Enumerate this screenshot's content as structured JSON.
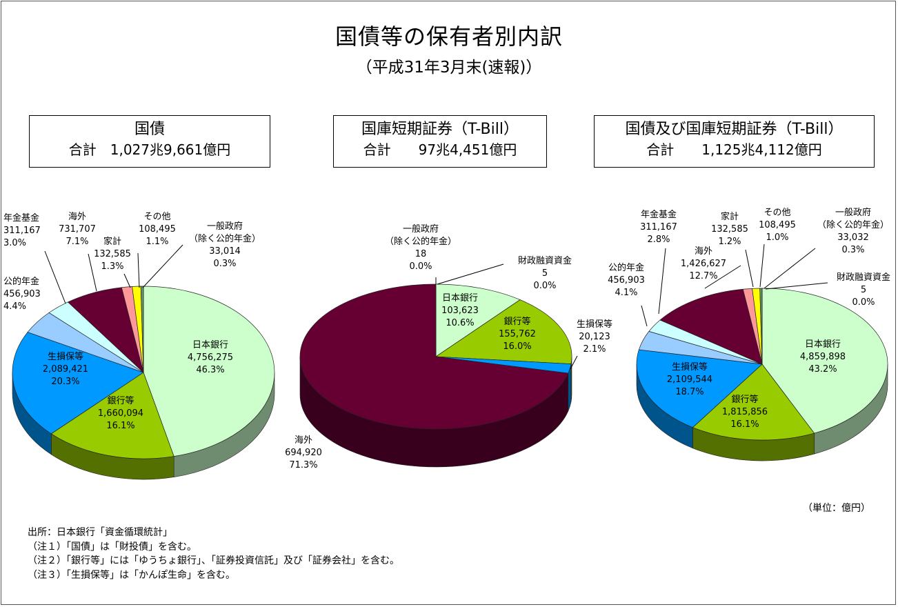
{
  "title": "国債等の保有者別内訳",
  "subtitle": "（平成31年3月末(速報)）",
  "unit": "（単位：億円）",
  "notes": [
    "出所：日本銀行「資金循環統計」",
    "（注１）「国債」は「財投債」を含む。",
    "（注２）「銀行等」には「ゆうちょ銀行」、「証券投資信託」及び「証券会社」を含む。",
    "（注３）「生損保等」は「かんぽ生命」を含む。"
  ],
  "colors": {
    "bank_of_japan": "#ccffcc",
    "banks": "#99cc00",
    "insurance": "#0099ff",
    "public_pension": "#99ccff",
    "pension_fund": "#ccffff",
    "overseas": "#660033",
    "households": "#ff9999",
    "others": "#ffff00",
    "general_government": "#669966",
    "fiscal_loan": "#003300"
  },
  "chart_data": [
    {
      "type": "pie",
      "title": "国債",
      "subtitle": "合計　1,027兆9,661億円",
      "slices": [
        {
          "name": "日本銀行",
          "value": "4,756,275",
          "pct": "46.3%",
          "n": 4756275,
          "color_key": "bank_of_japan",
          "label_lines": [
            "日本銀行",
            "4,756,275",
            "46.3%"
          ]
        },
        {
          "name": "銀行等",
          "value": "1,660,094",
          "pct": "16.1%",
          "n": 1660094,
          "color_key": "banks",
          "label_lines": [
            "銀行等",
            "1,660,094",
            "16.1%"
          ]
        },
        {
          "name": "生損保等",
          "value": "2,089,421",
          "pct": "20.3%",
          "n": 2089421,
          "color_key": "insurance",
          "label_lines": [
            "生損保等",
            "2,089,421",
            "20.3%"
          ]
        },
        {
          "name": "公的年金",
          "value": "456,903",
          "pct": "4.4%",
          "n": 456903,
          "color_key": "public_pension",
          "label_lines": [
            "公的年金",
            "456,903",
            "4.4%"
          ]
        },
        {
          "name": "年金基金",
          "value": "311,167",
          "pct": "3.0%",
          "n": 311167,
          "color_key": "pension_fund",
          "label_lines": [
            "年金基金",
            "311,167",
            "3.0%"
          ]
        },
        {
          "name": "海外",
          "value": "731,707",
          "pct": "7.1%",
          "n": 731707,
          "color_key": "overseas",
          "label_lines": [
            "海外",
            "731,707",
            "7.1%"
          ]
        },
        {
          "name": "家計",
          "value": "132,585",
          "pct": "1.3%",
          "n": 132585,
          "color_key": "households",
          "label_lines": [
            "家計",
            "132,585",
            "1.3%"
          ]
        },
        {
          "name": "その他",
          "value": "108,495",
          "pct": "1.1%",
          "n": 108495,
          "color_key": "others",
          "label_lines": [
            "その他",
            "108,495",
            "1.1%"
          ]
        },
        {
          "name": "一般政府（除く公的年金）",
          "value": "33,014",
          "pct": "0.3%",
          "n": 33014,
          "color_key": "general_government",
          "label_lines": [
            "一般政府",
            "（除く公的年金）",
            "33,014",
            "0.3%"
          ]
        }
      ]
    },
    {
      "type": "pie",
      "title": "国庫短期証券（T-Bill）",
      "subtitle": "合計　　97兆4,451億円",
      "slices": [
        {
          "name": "日本銀行",
          "value": "103,623",
          "pct": "10.6%",
          "n": 103623,
          "color_key": "bank_of_japan",
          "label_lines": [
            "日本銀行",
            "103,623",
            "10.6%"
          ]
        },
        {
          "name": "銀行等",
          "value": "155,762",
          "pct": "16.0%",
          "n": 155762,
          "color_key": "banks",
          "label_lines": [
            "銀行等",
            "155,762",
            "16.0%"
          ]
        },
        {
          "name": "生損保等",
          "value": "20,123",
          "pct": "2.1%",
          "n": 20123,
          "color_key": "insurance",
          "label_lines": [
            "生損保等",
            "20,123",
            "2.1%"
          ]
        },
        {
          "name": "海外",
          "value": "694,920",
          "pct": "71.3%",
          "n": 694920,
          "color_key": "overseas",
          "label_lines": [
            "海外",
            "694,920",
            "71.3%"
          ]
        },
        {
          "name": "一般政府（除く公的年金）",
          "value": "18",
          "pct": "0.0%",
          "n": 18,
          "color_key": "general_government",
          "label_lines": [
            "一般政府",
            "（除く公的年金）",
            "18",
            "0.0%"
          ]
        },
        {
          "name": "財政融資資金",
          "value": "5",
          "pct": "0.0%",
          "n": 5,
          "color_key": "fiscal_loan",
          "label_lines": [
            "財政融資資金",
            "5",
            "0.0%"
          ]
        }
      ]
    },
    {
      "type": "pie",
      "title": "国債及び国庫短期証券（T-Bill）",
      "subtitle": "合計　　1,125兆4,112億円",
      "slices": [
        {
          "name": "日本銀行",
          "value": "4,859,898",
          "pct": "43.2%",
          "n": 4859898,
          "color_key": "bank_of_japan",
          "label_lines": [
            "日本銀行",
            "4,859,898",
            "43.2%"
          ]
        },
        {
          "name": "銀行等",
          "value": "1,815,856",
          "pct": "16.1%",
          "n": 1815856,
          "color_key": "banks",
          "label_lines": [
            "銀行等",
            "1,815,856",
            "16.1%"
          ]
        },
        {
          "name": "生損保等",
          "value": "2,109,544",
          "pct": "18.7%",
          "n": 2109544,
          "color_key": "insurance",
          "label_lines": [
            "生損保等",
            "2,109,544",
            "18.7%"
          ]
        },
        {
          "name": "公的年金",
          "value": "456,903",
          "pct": "4.1%",
          "n": 456903,
          "color_key": "public_pension",
          "label_lines": [
            "公的年金",
            "456,903",
            "4.1%"
          ]
        },
        {
          "name": "年金基金",
          "value": "311,167",
          "pct": "2.8%",
          "n": 311167,
          "color_key": "pension_fund",
          "label_lines": [
            "年金基金",
            "311,167",
            "2.8%"
          ]
        },
        {
          "name": "海外",
          "value": "1,426,627",
          "pct": "12.7%",
          "n": 1426627,
          "color_key": "overseas",
          "label_lines": [
            "海外",
            "1,426,627",
            "12.7%"
          ]
        },
        {
          "name": "家計",
          "value": "132,585",
          "pct": "1.2%",
          "n": 132585,
          "color_key": "households",
          "label_lines": [
            "家計",
            "132,585",
            "1.2%"
          ]
        },
        {
          "name": "その他",
          "value": "108,495",
          "pct": "1.0%",
          "n": 108495,
          "color_key": "others",
          "label_lines": [
            "その他",
            "108,495",
            "1.0%"
          ]
        },
        {
          "name": "一般政府（除く公的年金）",
          "value": "33,032",
          "pct": "0.3%",
          "n": 33032,
          "color_key": "general_government",
          "label_lines": [
            "一般政府",
            "（除く公的年金）",
            "33,032",
            "0.3%"
          ]
        },
        {
          "name": "財政融資資金",
          "value": "5",
          "pct": "0.0%",
          "n": 5,
          "color_key": "fiscal_loan",
          "label_lines": [
            "財政融資資金",
            "5",
            "0.0%"
          ]
        }
      ]
    }
  ]
}
